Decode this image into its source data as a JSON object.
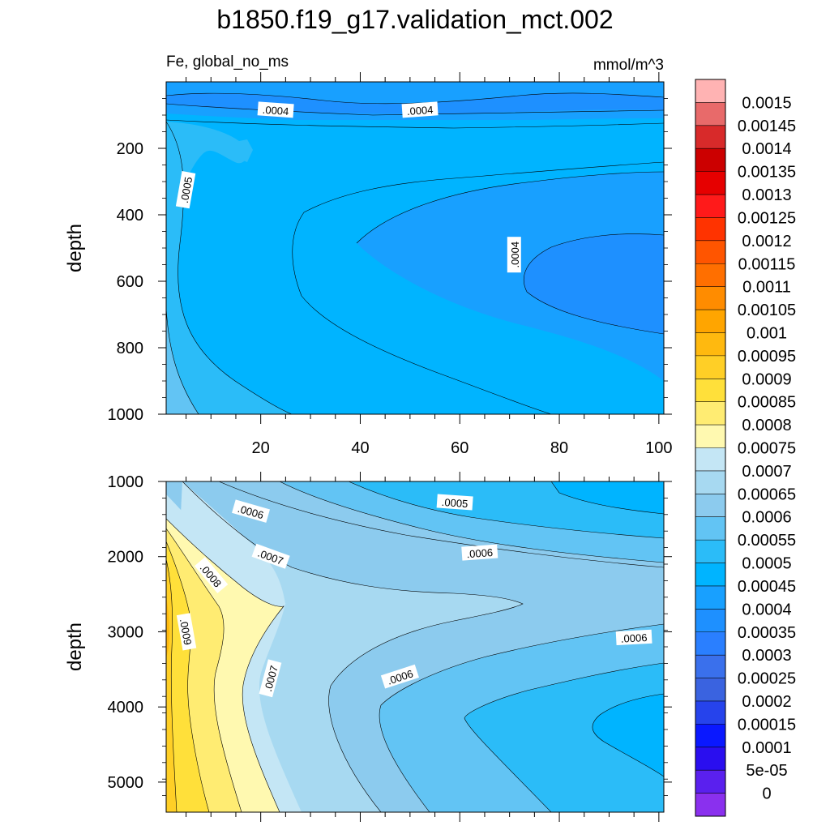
{
  "title": "b1850.f19_g17.validation_mct.002",
  "left_string": "Fe, global_no_ms",
  "right_string": "mmol/m^3",
  "chart_data": [
    {
      "type": "contour",
      "panel": "upper",
      "ylabel": "depth",
      "xlabel": "",
      "xlim": [
        1,
        101
      ],
      "ylim": [
        1000,
        0
      ],
      "xticks": [
        20,
        40,
        60,
        80,
        100
      ],
      "yticks": [
        200,
        400,
        600,
        800,
        1000
      ],
      "contour_labels": [
        {
          "text": ".0004",
          "x": 23,
          "y": 85
        },
        {
          "text": ".0004",
          "x": 52,
          "y": 85
        },
        {
          "text": ".0005",
          "x": 5,
          "y": 325
        },
        {
          "text": ".0004",
          "x": 71,
          "y": 520
        }
      ]
    },
    {
      "type": "contour",
      "panel": "lower",
      "ylabel": "depth",
      "xlabel": "",
      "xlim": [
        1,
        101
      ],
      "ylim": [
        5400,
        1000
      ],
      "yticks": [
        1000,
        2000,
        3000,
        4000,
        5000
      ],
      "contour_labels": [
        {
          "text": ".0005",
          "x": 59,
          "y": 1280
        },
        {
          "text": ".0006",
          "x": 18,
          "y": 1400
        },
        {
          "text": ".0006",
          "x": 64,
          "y": 1950
        },
        {
          "text": ".0007",
          "x": 22,
          "y": 2000
        },
        {
          "text": ".0008",
          "x": 10,
          "y": 2250
        },
        {
          "text": ".0009",
          "x": 5,
          "y": 3000
        },
        {
          "text": ".0006",
          "x": 95,
          "y": 3080
        },
        {
          "text": ".0007",
          "x": 22,
          "y": 3620
        },
        {
          "text": ".0006",
          "x": 48,
          "y": 3600
        }
      ]
    }
  ],
  "colorbar": {
    "labels": [
      "0.0015",
      "0.00145",
      "0.0014",
      "0.00135",
      "0.0013",
      "0.00125",
      "0.0012",
      "0.00115",
      "0.0011",
      "0.00105",
      "0.001",
      "0.00095",
      "0.0009",
      "0.00085",
      "0.0008",
      "0.00075",
      "0.0007",
      "0.00065",
      "0.0006",
      "0.00055",
      "0.0005",
      "0.00045",
      "0.0004",
      "0.00035",
      "0.0003",
      "0.00025",
      "0.0002",
      "0.00015",
      "0.0001",
      "5e-05",
      "0"
    ],
    "colors": [
      "#ffb3b3",
      "#e86a6a",
      "#d82a2a",
      "#cc0000",
      "#e60000",
      "#ff1a1a",
      "#ff3300",
      "#ff5500",
      "#ff6f00",
      "#ff8c00",
      "#ffa500",
      "#ffb90f",
      "#ffcf26",
      "#ffe03a",
      "#ffec72",
      "#fff9b0",
      "#c4e6f5",
      "#a7d9f1",
      "#8ccbee",
      "#62c4f4",
      "#2bbcf8",
      "#00b4ff",
      "#18a0ff",
      "#1e90ff",
      "#2a7fff",
      "#3a70ec",
      "#3a63e0",
      "#2643ec",
      "#0a18ff",
      "#2a0eef",
      "#5a20ee",
      "#8a30ee"
    ]
  }
}
